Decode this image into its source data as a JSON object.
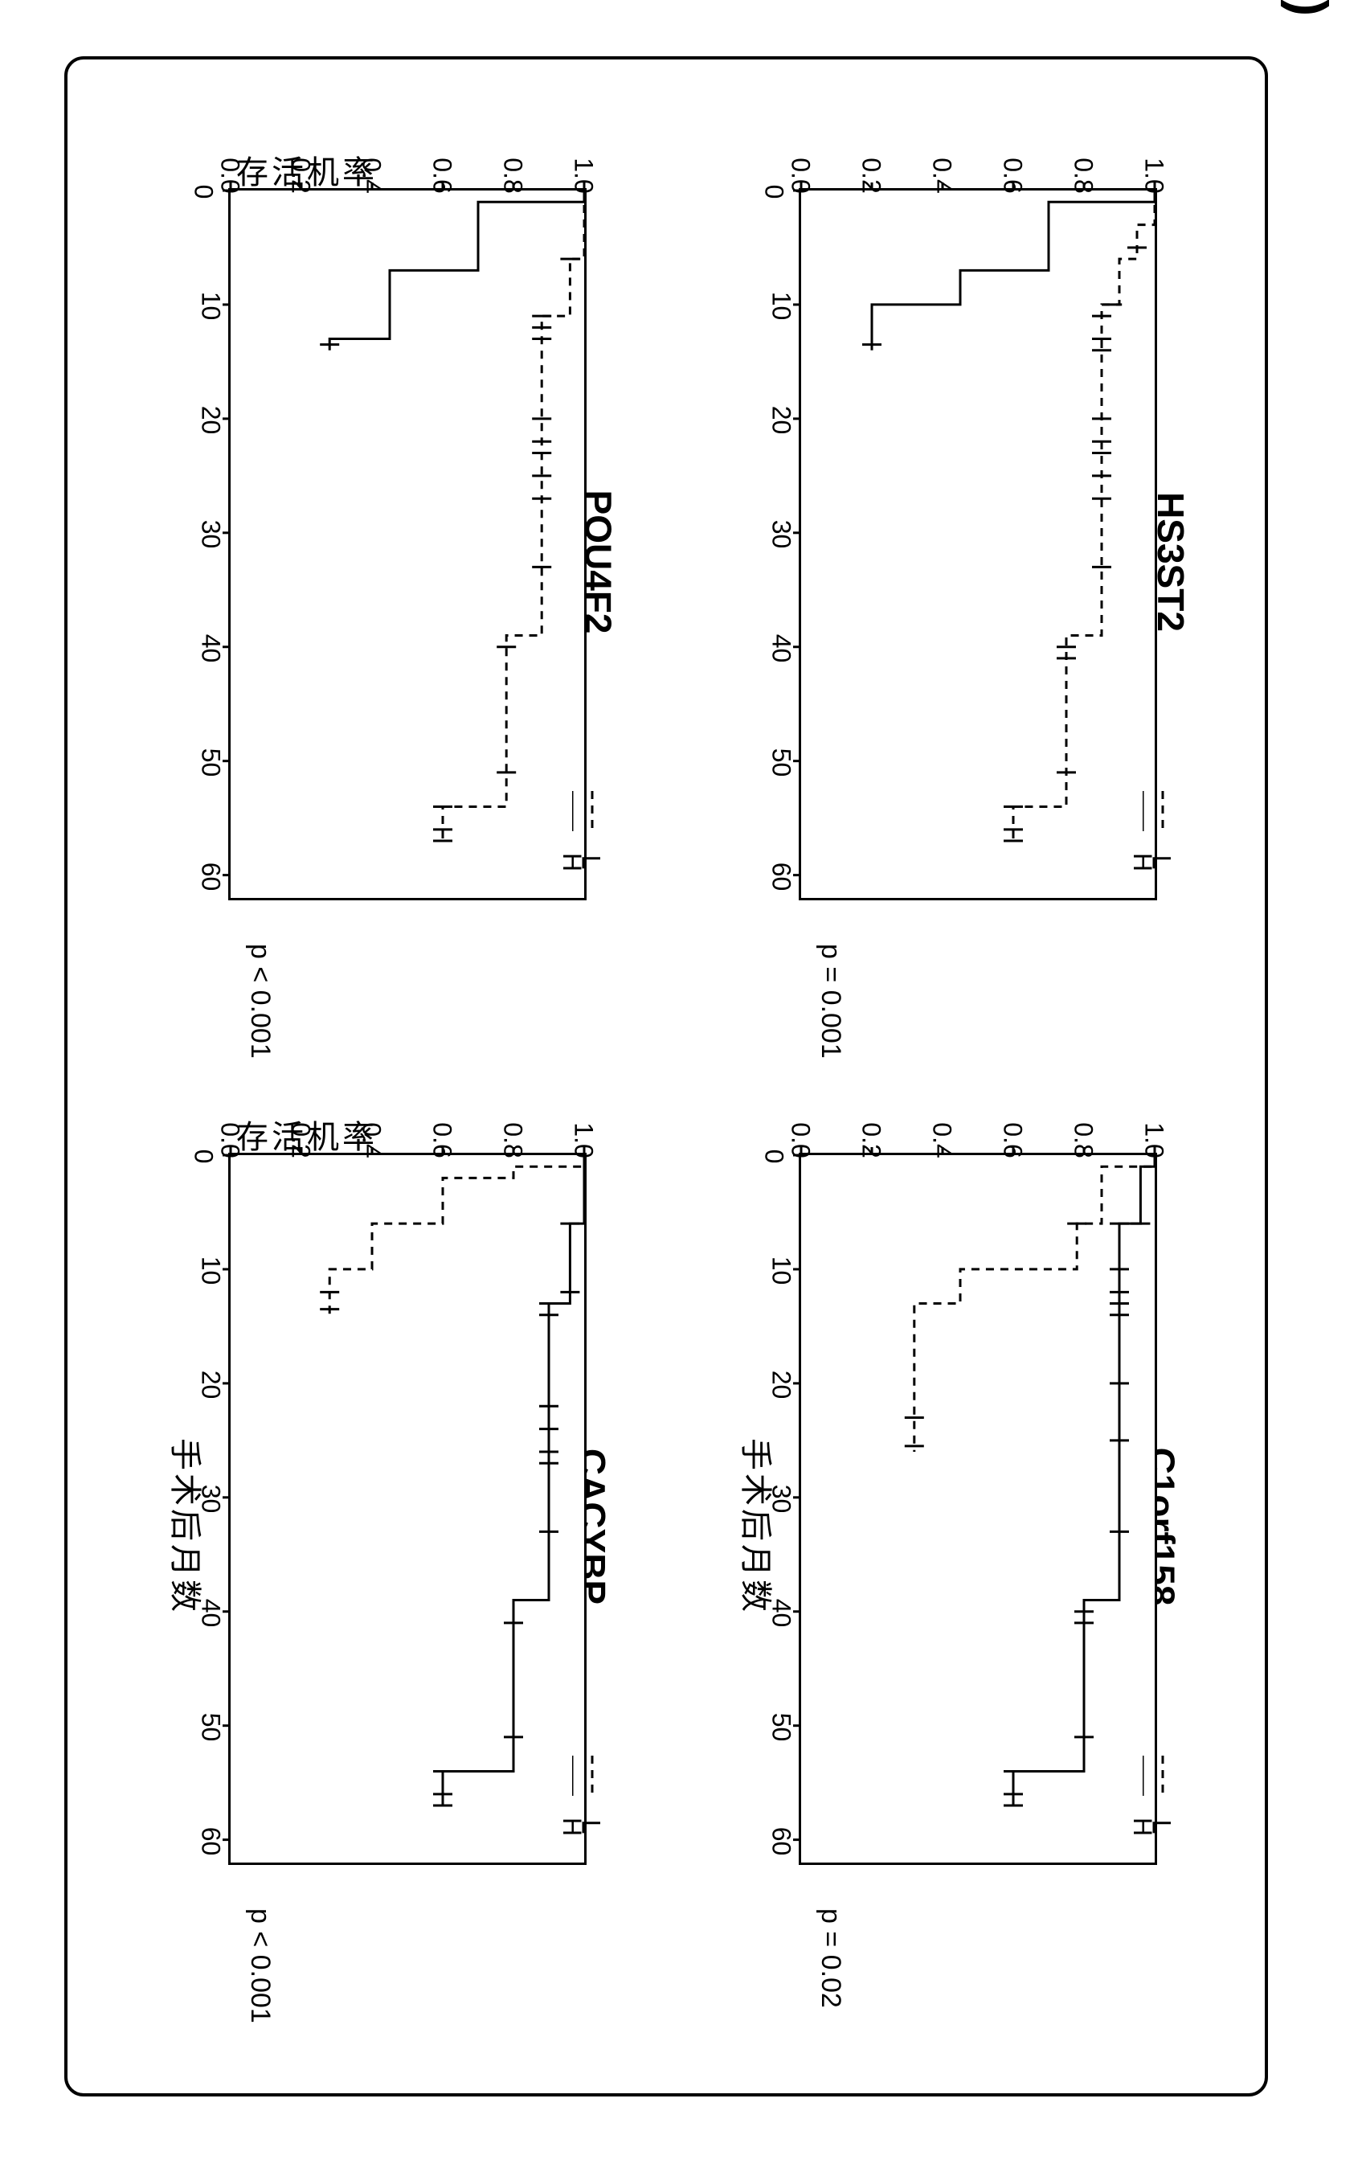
{
  "panel_label": "(b)",
  "y_axis_label": "存活机率",
  "x_axis_label": "手术后月数",
  "y_ticks": [
    0.0,
    0.2,
    0.4,
    0.6,
    0.8,
    1.0
  ],
  "x_ticks": [
    0,
    10,
    20,
    30,
    40,
    50,
    60
  ],
  "xlim": [
    0,
    62
  ],
  "ylim": [
    0.0,
    1.0
  ],
  "colors": {
    "line": "#000000",
    "background": "#ffffff",
    "border": "#000000"
  },
  "line_widths": {
    "solid": 3,
    "dashed": 3
  },
  "dash_pattern": "10,8",
  "censor_mark_size": 12,
  "legend": {
    "H_label": "H",
    "L_label": "L"
  },
  "plots": {
    "pou4f2": {
      "title": "POU4F2",
      "pvalue": "p < 0.001",
      "H_style": "solid",
      "L_style": "dashed",
      "H_steps": [
        [
          0,
          1.0
        ],
        [
          1,
          1.0
        ],
        [
          1,
          0.7
        ],
        [
          7,
          0.7
        ],
        [
          7,
          0.45
        ],
        [
          13,
          0.45
        ],
        [
          13,
          0.28
        ],
        [
          14,
          0.28
        ]
      ],
      "H_censors": [
        [
          13.5,
          0.28
        ]
      ],
      "L_steps": [
        [
          0,
          1.0
        ],
        [
          6,
          1.0
        ],
        [
          6,
          0.96
        ],
        [
          11,
          0.96
        ],
        [
          11,
          0.88
        ],
        [
          39,
          0.88
        ],
        [
          39,
          0.78
        ],
        [
          54,
          0.78
        ],
        [
          54,
          0.6
        ],
        [
          57,
          0.6
        ]
      ],
      "L_censors": [
        [
          6,
          0.96
        ],
        [
          11,
          0.88
        ],
        [
          12,
          0.88
        ],
        [
          13,
          0.88
        ],
        [
          20,
          0.88
        ],
        [
          22,
          0.88
        ],
        [
          23,
          0.88
        ],
        [
          25,
          0.88
        ],
        [
          27,
          0.88
        ],
        [
          33,
          0.88
        ],
        [
          40,
          0.78
        ],
        [
          51,
          0.78
        ],
        [
          54,
          0.6
        ],
        [
          56,
          0.6
        ],
        [
          57,
          0.6
        ]
      ]
    },
    "hs3st2": {
      "title": "HS3ST2",
      "pvalue": "p = 0.001",
      "H_style": "solid",
      "L_style": "dashed",
      "H_steps": [
        [
          0,
          1.0
        ],
        [
          1,
          1.0
        ],
        [
          1,
          0.7
        ],
        [
          7,
          0.7
        ],
        [
          7,
          0.45
        ],
        [
          10,
          0.45
        ],
        [
          10,
          0.2
        ],
        [
          14,
          0.2
        ]
      ],
      "H_censors": [
        [
          13.5,
          0.2
        ]
      ],
      "L_steps": [
        [
          0,
          1.0
        ],
        [
          3,
          1.0
        ],
        [
          3,
          0.95
        ],
        [
          6,
          0.95
        ],
        [
          6,
          0.9
        ],
        [
          10,
          0.9
        ],
        [
          10,
          0.85
        ],
        [
          39,
          0.85
        ],
        [
          39,
          0.75
        ],
        [
          54,
          0.75
        ],
        [
          54,
          0.6
        ],
        [
          57,
          0.6
        ]
      ],
      "L_censors": [
        [
          5,
          0.95
        ],
        [
          10,
          0.88
        ],
        [
          11,
          0.85
        ],
        [
          13,
          0.85
        ],
        [
          14,
          0.85
        ],
        [
          20,
          0.85
        ],
        [
          22,
          0.85
        ],
        [
          23,
          0.85
        ],
        [
          25,
          0.85
        ],
        [
          27,
          0.85
        ],
        [
          33,
          0.85
        ],
        [
          40,
          0.75
        ],
        [
          41,
          0.75
        ],
        [
          51,
          0.75
        ],
        [
          54,
          0.6
        ],
        [
          56,
          0.6
        ],
        [
          57,
          0.6
        ]
      ]
    },
    "cacybp": {
      "title": "CACYBP",
      "pvalue": "p < 0.001",
      "H_style": "solid",
      "L_style": "dashed",
      "H_steps": [
        [
          0,
          1.0
        ],
        [
          6,
          1.0
        ],
        [
          6,
          0.96
        ],
        [
          13,
          0.96
        ],
        [
          13,
          0.9
        ],
        [
          39,
          0.9
        ],
        [
          39,
          0.8
        ],
        [
          54,
          0.8
        ],
        [
          54,
          0.6
        ],
        [
          57,
          0.6
        ]
      ],
      "H_censors": [
        [
          6,
          0.96
        ],
        [
          12,
          0.96
        ],
        [
          13,
          0.9
        ],
        [
          14,
          0.9
        ],
        [
          22,
          0.9
        ],
        [
          24,
          0.9
        ],
        [
          26,
          0.9
        ],
        [
          27,
          0.9
        ],
        [
          33,
          0.9
        ],
        [
          41,
          0.8
        ],
        [
          51,
          0.8
        ],
        [
          54,
          0.6
        ],
        [
          56,
          0.6
        ],
        [
          57,
          0.6
        ]
      ],
      "L_steps": [
        [
          0,
          1.0
        ],
        [
          1,
          1.0
        ],
        [
          1,
          0.8
        ],
        [
          2,
          0.8
        ],
        [
          2,
          0.6
        ],
        [
          6,
          0.6
        ],
        [
          6,
          0.4
        ],
        [
          10,
          0.4
        ],
        [
          10,
          0.28
        ],
        [
          14,
          0.28
        ]
      ],
      "L_censors": [
        [
          12,
          0.28
        ],
        [
          13.5,
          0.28
        ]
      ]
    },
    "c1orf158": {
      "title": "C1orf158",
      "pvalue": "p = 0.02",
      "H_style": "solid",
      "L_style": "dashed",
      "H_steps": [
        [
          0,
          1.0
        ],
        [
          1,
          1.0
        ],
        [
          1,
          0.96
        ],
        [
          6,
          0.96
        ],
        [
          6,
          0.9
        ],
        [
          39,
          0.9
        ],
        [
          39,
          0.8
        ],
        [
          54,
          0.8
        ],
        [
          54,
          0.6
        ],
        [
          57,
          0.6
        ]
      ],
      "H_censors": [
        [
          6,
          0.96
        ],
        [
          6,
          0.9
        ],
        [
          10,
          0.9
        ],
        [
          12,
          0.9
        ],
        [
          13,
          0.9
        ],
        [
          14,
          0.9
        ],
        [
          20,
          0.9
        ],
        [
          25,
          0.9
        ],
        [
          33,
          0.9
        ],
        [
          40,
          0.8
        ],
        [
          41,
          0.8
        ],
        [
          51,
          0.8
        ],
        [
          54,
          0.6
        ],
        [
          56,
          0.6
        ],
        [
          57,
          0.6
        ]
      ],
      "L_steps": [
        [
          0,
          1.0
        ],
        [
          1,
          1.0
        ],
        [
          1,
          0.85
        ],
        [
          6,
          0.85
        ],
        [
          6,
          0.78
        ],
        [
          10,
          0.78
        ],
        [
          10,
          0.45
        ],
        [
          13,
          0.45
        ],
        [
          13,
          0.32
        ],
        [
          26,
          0.32
        ]
      ],
      "L_censors": [
        [
          6,
          0.78
        ],
        [
          23,
          0.32
        ],
        [
          25.5,
          0.32
        ]
      ]
    }
  }
}
